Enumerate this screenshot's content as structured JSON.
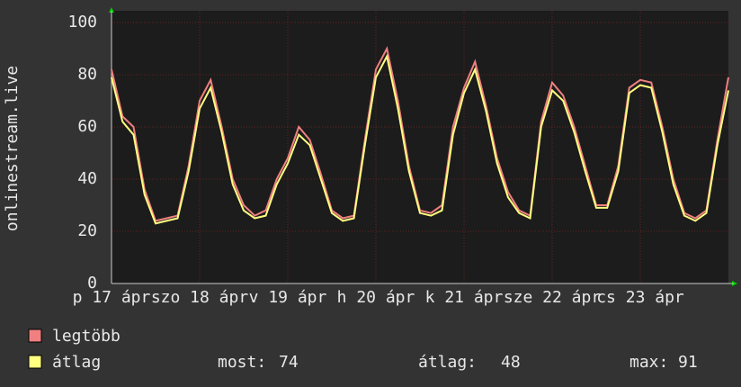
{
  "chart_data": {
    "type": "line",
    "y_label": "onlinestream.live",
    "x": [
      0,
      3,
      6,
      9,
      12,
      15,
      18,
      21,
      24,
      27,
      30,
      33,
      36,
      39,
      42,
      45,
      48,
      51,
      54,
      57,
      60,
      63,
      66,
      69,
      72,
      75,
      78,
      81,
      84,
      87,
      90,
      93,
      96,
      99,
      102,
      105,
      108,
      111,
      114,
      117,
      120,
      123,
      126,
      129,
      132,
      135,
      138,
      141,
      144,
      147,
      150,
      153,
      156,
      159,
      162,
      165,
      168
    ],
    "xlim": [
      0,
      168
    ],
    "xticks": [
      {
        "value": 0,
        "label": "p 17 ápr"
      },
      {
        "value": 24,
        "label": "szo 18 ápr"
      },
      {
        "value": 48,
        "label": "v 19 ápr"
      },
      {
        "value": 72,
        "label": "h 20 ápr"
      },
      {
        "value": 96,
        "label": "k 21 ápr"
      },
      {
        "value": 120,
        "label": "sze 22 ápr"
      },
      {
        "value": 144,
        "label": "cs 23 ápr"
      }
    ],
    "ylim": [
      0,
      100
    ],
    "yticks": [
      0,
      20,
      40,
      60,
      80,
      100
    ],
    "grid": true,
    "series": [
      {
        "name": "legtöbb",
        "color": "#f08080",
        "values": [
          82,
          64,
          60,
          36,
          24,
          25,
          26,
          45,
          70,
          78,
          60,
          40,
          30,
          26,
          28,
          40,
          48,
          60,
          55,
          42,
          28,
          25,
          26,
          55,
          82,
          90,
          70,
          45,
          28,
          27,
          30,
          60,
          75,
          85,
          68,
          48,
          35,
          28,
          26,
          62,
          77,
          72,
          60,
          45,
          30,
          30,
          45,
          75,
          78,
          77,
          60,
          40,
          27,
          25,
          28,
          55,
          79
        ]
      },
      {
        "name": "átlag",
        "color": "#ffff80",
        "values": [
          79,
          62,
          57,
          34,
          23,
          24,
          25,
          43,
          67,
          75,
          58,
          38,
          28,
          25,
          26,
          38,
          46,
          57,
          53,
          40,
          27,
          24,
          25,
          53,
          79,
          87,
          67,
          43,
          27,
          26,
          28,
          57,
          73,
          82,
          66,
          46,
          33,
          27,
          25,
          60,
          74,
          70,
          58,
          43,
          29,
          29,
          43,
          73,
          76,
          75,
          58,
          38,
          26,
          24,
          27,
          53,
          74
        ]
      }
    ],
    "stats": [
      {
        "label": "most:",
        "value": 74
      },
      {
        "label": "átlag:",
        "value": 48
      },
      {
        "label": "max:",
        "value": 91
      }
    ]
  }
}
